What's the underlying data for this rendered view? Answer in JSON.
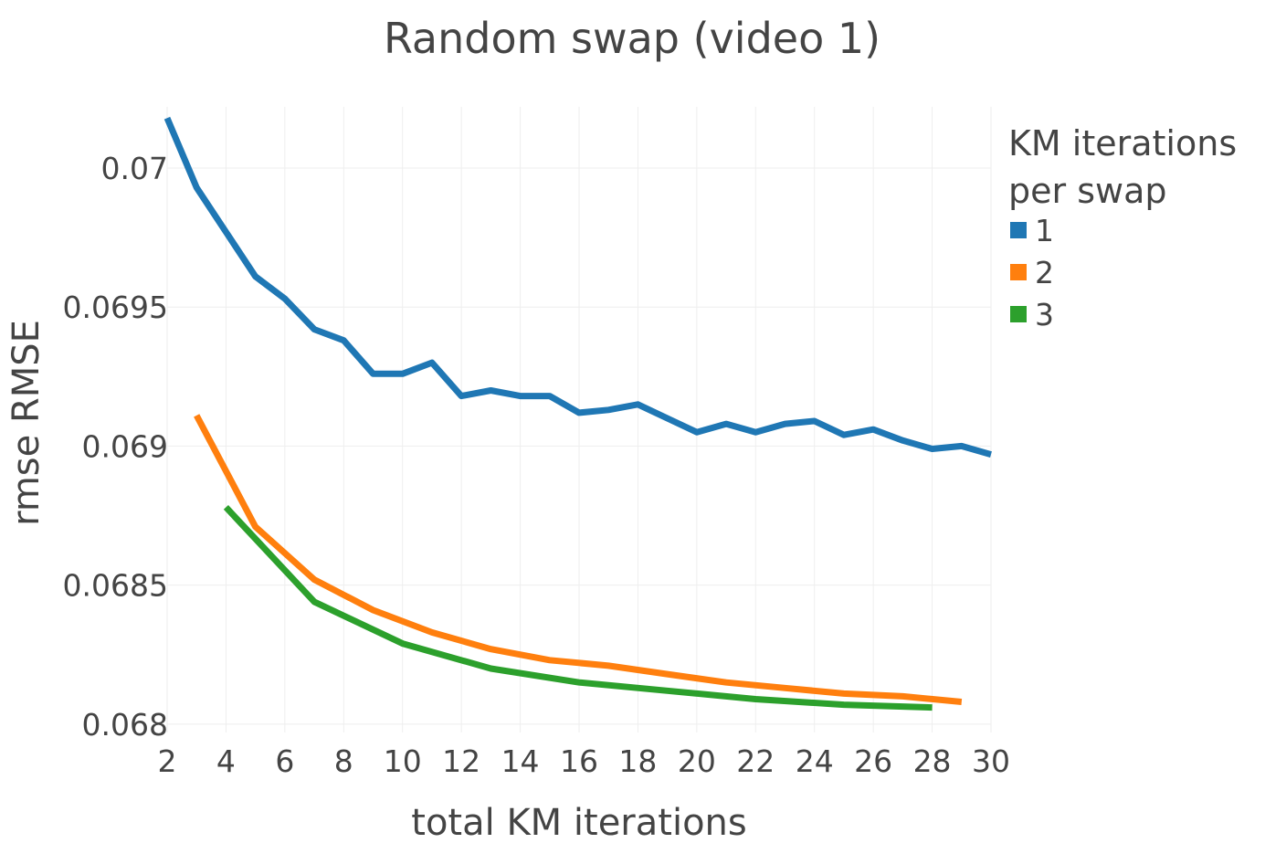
{
  "chart_data": {
    "type": "line",
    "title": "Random swap (video 1)",
    "xlabel": "total KM iterations",
    "ylabel": "rmse RMSE",
    "xlim": [
      2,
      30
    ],
    "ylim": [
      0.06797,
      0.07022
    ],
    "xticks": [
      2,
      4,
      6,
      8,
      10,
      12,
      14,
      16,
      18,
      20,
      22,
      24,
      26,
      28,
      30
    ],
    "xtick_labels": [
      "2",
      "4",
      "6",
      "8",
      "10",
      "12",
      "14",
      "16",
      "18",
      "20",
      "22",
      "24",
      "26",
      "28",
      "30"
    ],
    "yticks": [
      0.068,
      0.0685,
      0.069,
      0.0695,
      0.07
    ],
    "ytick_labels": [
      "0.068",
      "0.0685",
      "0.069",
      "0.0695",
      "0.07"
    ],
    "grid": true,
    "legend": {
      "title_lines": [
        "KM iterations",
        "per swap"
      ],
      "position": "top-right"
    },
    "series": [
      {
        "name": "1",
        "color": "#1f77b4",
        "x": [
          2,
          3,
          4,
          5,
          6,
          7,
          8,
          9,
          10,
          11,
          12,
          13,
          14,
          15,
          16,
          17,
          18,
          19,
          20,
          21,
          22,
          23,
          24,
          25,
          26,
          27,
          28,
          29,
          30
        ],
        "y": [
          0.07018,
          0.06993,
          0.06977,
          0.06961,
          0.06953,
          0.06942,
          0.06938,
          0.06926,
          0.06926,
          0.0693,
          0.06918,
          0.0692,
          0.06918,
          0.06918,
          0.06912,
          0.06913,
          0.06915,
          0.0691,
          0.06905,
          0.06908,
          0.06905,
          0.06908,
          0.06909,
          0.06904,
          0.06906,
          0.06902,
          0.06899,
          0.069,
          0.06897
        ]
      },
      {
        "name": "2",
        "color": "#ff7f0e",
        "x": [
          3,
          5,
          7,
          9,
          11,
          13,
          15,
          17,
          19,
          21,
          23,
          25,
          27,
          29
        ],
        "y": [
          0.06911,
          0.06871,
          0.06852,
          0.06841,
          0.06833,
          0.06827,
          0.06823,
          0.06821,
          0.06818,
          0.06815,
          0.06813,
          0.06811,
          0.0681,
          0.06808
        ]
      },
      {
        "name": "3",
        "color": "#2ca02c",
        "x": [
          4,
          7,
          10,
          13,
          16,
          19,
          22,
          25,
          28
        ],
        "y": [
          0.06878,
          0.06844,
          0.06829,
          0.0682,
          0.06815,
          0.06812,
          0.06809,
          0.06807,
          0.06806
        ]
      }
    ]
  }
}
